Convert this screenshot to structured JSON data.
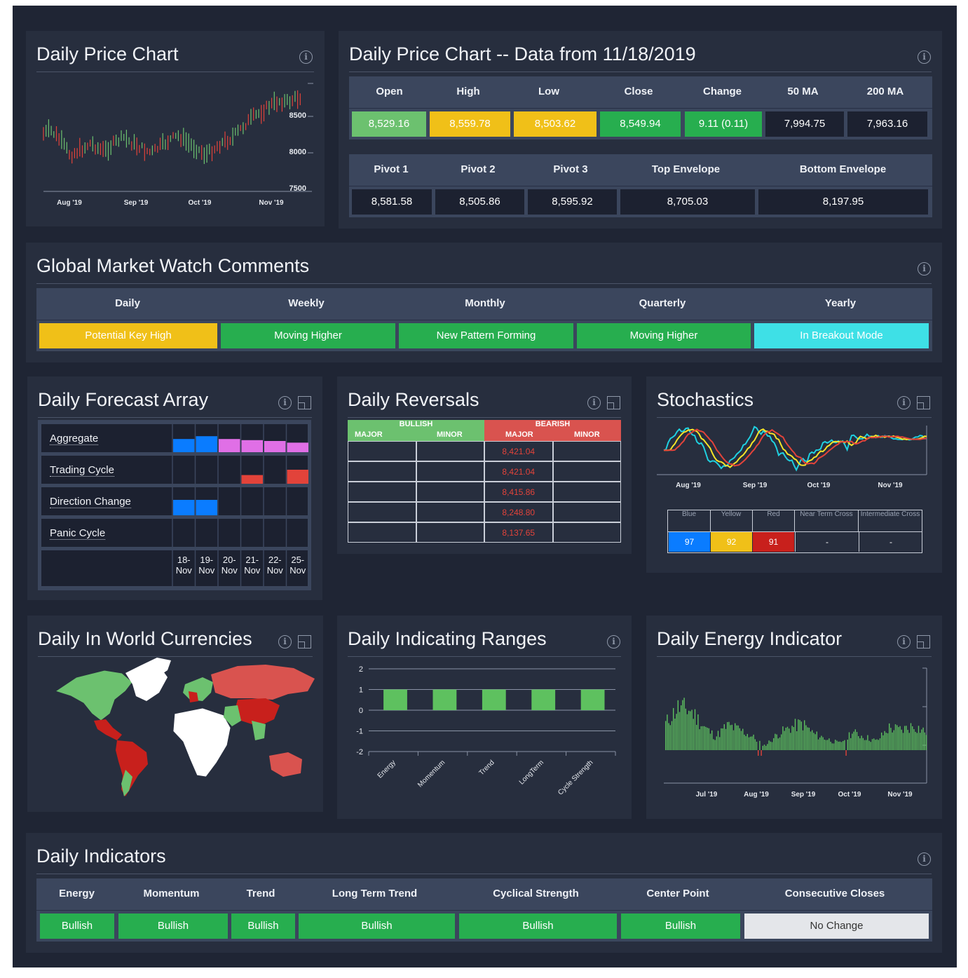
{
  "price_chart": {
    "title": "Daily Price Chart",
    "y_ticks": [
      "8500",
      "8000",
      "7500"
    ],
    "x_ticks": [
      "Aug '19",
      "Sep '19",
      "Oct '19",
      "Nov '19"
    ]
  },
  "price_data": {
    "title": "Daily Price Chart -- Data from 11/18/2019",
    "row1_headers": [
      "Open",
      "High",
      "Low",
      "Close",
      "Change",
      "50 MA",
      "200 MA"
    ],
    "row1_values": [
      "8,529.16",
      "8,559.78",
      "8,503.62",
      "8,549.94",
      "9.11 (0.11)",
      "7,994.75",
      "7,963.16"
    ],
    "row2_headers": [
      "Pivot 1",
      "Pivot 2",
      "Pivot 3",
      "Top Envelope",
      "Bottom Envelope"
    ],
    "row2_values": [
      "8,581.58",
      "8,505.86",
      "8,595.92",
      "8,705.03",
      "8,197.95"
    ]
  },
  "comments": {
    "title": "Global Market Watch Comments",
    "headers": [
      "Daily",
      "Weekly",
      "Monthly",
      "Quarterly",
      "Yearly"
    ],
    "values": [
      "Potential Key High",
      "Moving Higher",
      "New Pattern Forming",
      "Moving Higher",
      "In Breakout Mode"
    ]
  },
  "forecast": {
    "title": "Daily Forecast Array",
    "rows": [
      "Aggregate",
      "Trading Cycle",
      "Direction Change",
      "Panic Cycle"
    ],
    "dates_top": [
      "18-",
      "19-",
      "20-",
      "21-",
      "22-",
      "25-"
    ],
    "dates_bottom": [
      "Nov",
      "Nov",
      "Nov",
      "Nov",
      "Nov",
      "Nov"
    ]
  },
  "reversals": {
    "title": "Daily Reversals",
    "bullish": "BULLISH",
    "bearish": "BEARISH",
    "major": "MAJOR",
    "minor": "MINOR",
    "bearish_major": [
      "8,421.04",
      "8,421.04",
      "8,415.86",
      "8,248.80",
      "8,137.65"
    ]
  },
  "stochastics": {
    "title": "Stochastics",
    "x_ticks": [
      "Aug '19",
      "Sep '19",
      "Oct '19",
      "Nov '19"
    ],
    "headers": [
      "Blue",
      "Yellow",
      "Red",
      "Near Term Cross",
      "Intermediate Cross"
    ],
    "values": [
      "97",
      "92",
      "91",
      "-",
      "-"
    ]
  },
  "currencies": {
    "title": "Daily In World Currencies"
  },
  "ranges": {
    "title": "Daily Indicating Ranges",
    "y_ticks": [
      "2",
      "1",
      "0",
      "-1",
      "-2"
    ],
    "categories": [
      "Energy",
      "Momentum",
      "Trend",
      "LongTerm",
      "Cycle Strength"
    ]
  },
  "energy": {
    "title": "Daily Energy Indicator",
    "x_ticks": [
      "Jul '19",
      "Aug '19",
      "Sep '19",
      "Oct '19",
      "Nov '19"
    ]
  },
  "indicators": {
    "title": "Daily Indicators",
    "headers": [
      "Energy",
      "Momentum",
      "Trend",
      "Long Term Trend",
      "Cyclical Strength",
      "Center Point",
      "Consecutive Closes"
    ],
    "values": [
      "Bullish",
      "Bullish",
      "Bullish",
      "Bullish",
      "Bullish",
      "Bullish",
      "No Change"
    ]
  },
  "colors": {
    "green": "#27ae4f",
    "yellow": "#f0c018",
    "cyan": "#3ee0e6",
    "blue": "#0a7cff",
    "red": "#e2433a",
    "magenta": "#e06fe6"
  },
  "chart_data": [
    {
      "type": "bar",
      "title": "Daily Indicating Ranges",
      "categories": [
        "Energy",
        "Momentum",
        "Trend",
        "LongTerm",
        "Cycle Strength"
      ],
      "values": [
        1,
        1,
        1,
        1,
        1
      ],
      "ylim": [
        -2,
        2
      ]
    },
    {
      "type": "line",
      "title": "Stochastics",
      "series": [
        {
          "name": "Blue",
          "last": 97
        },
        {
          "name": "Yellow",
          "last": 92
        },
        {
          "name": "Red",
          "last": 91
        }
      ]
    },
    {
      "type": "bar",
      "title": "Daily Forecast Array",
      "categories": [
        "18-Nov",
        "19-Nov",
        "20-Nov",
        "21-Nov",
        "22-Nov",
        "25-Nov"
      ],
      "series": [
        {
          "name": "Aggregate",
          "values": [
            0.47,
            0.57,
            0.47,
            0.43,
            0.4,
            0.34
          ]
        },
        {
          "name": "Trading Cycle",
          "values": [
            0,
            0,
            0,
            0.31,
            0,
            0.5
          ]
        },
        {
          "name": "Direction Change",
          "values": [
            0.55,
            0.55,
            0,
            0,
            0,
            0
          ]
        },
        {
          "name": "Panic Cycle",
          "values": [
            0,
            0,
            0,
            0,
            0,
            0
          ]
        }
      ]
    }
  ]
}
